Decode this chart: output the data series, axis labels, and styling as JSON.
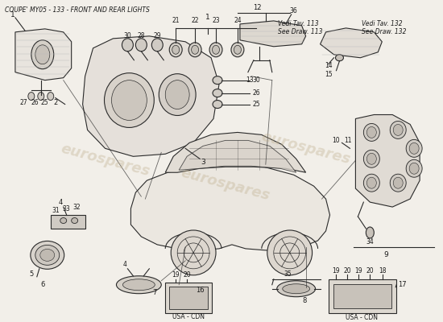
{
  "title": "COUPE' MY05 - 133 - FRONT AND REAR LIGHTS",
  "title_fontsize": 5.5,
  "bg_color": "#f2efe9",
  "line_color": "#2a2a2a",
  "text_color": "#1a1a1a",
  "watermark_text": "eurospares",
  "watermark_color": "#c0b090",
  "watermark_alpha": 0.38,
  "fig_width": 5.5,
  "fig_height": 4.0,
  "note1_text": "Vedi Tav. 113\nSee Draw. 113",
  "note2_text": "Vedi Tav. 132\nSee Draw. 132",
  "usa_cdn_text": "USA - CDN"
}
